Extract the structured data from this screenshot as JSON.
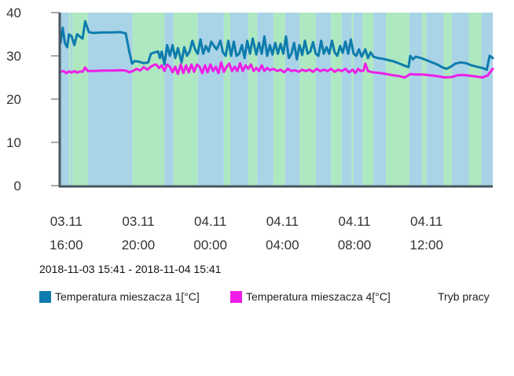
{
  "chart_data": {
    "type": "line",
    "ylim": [
      0,
      40
    ],
    "yticks": [
      0,
      10,
      20,
      30,
      40
    ],
    "xlim_hours": [
      15.68,
      39.68
    ],
    "xticks": [
      {
        "hour": 16,
        "line1": "03.11",
        "line2": "16:00"
      },
      {
        "hour": 20,
        "line1": "03.11",
        "line2": "20:00"
      },
      {
        "hour": 24,
        "line1": "04.11",
        "line2": "00:00"
      },
      {
        "hour": 28,
        "line1": "04.11",
        "line2": "04:00"
      },
      {
        "hour": 32,
        "line1": "04.11",
        "line2": "08:00"
      },
      {
        "hour": 36,
        "line1": "04.11",
        "line2": "12:00"
      }
    ],
    "time_range": "2018-11-03 15:41 - 2018-11-04 15:41",
    "grid": false,
    "legend_position": "bottom",
    "series": [
      {
        "name": "Temperatura mieszacza 1[°C]",
        "color": "#0e7cad",
        "points": [
          [
            15.68,
            33
          ],
          [
            15.8,
            36.5
          ],
          [
            15.92,
            33
          ],
          [
            16.05,
            32
          ],
          [
            16.15,
            35
          ],
          [
            16.3,
            34.5
          ],
          [
            16.45,
            32.5
          ],
          [
            16.6,
            35
          ],
          [
            16.75,
            34.5
          ],
          [
            16.9,
            34
          ],
          [
            17.05,
            38
          ],
          [
            17.25,
            35.5
          ],
          [
            17.5,
            35.3
          ],
          [
            18.0,
            35.4
          ],
          [
            18.5,
            35.4
          ],
          [
            19.0,
            35.5
          ],
          [
            19.3,
            35.2
          ],
          [
            19.5,
            31
          ],
          [
            19.65,
            28.2
          ],
          [
            19.8,
            28.8
          ],
          [
            20.0,
            28.7
          ],
          [
            20.3,
            28.3
          ],
          [
            20.55,
            28.5
          ],
          [
            20.7,
            30.5
          ],
          [
            20.9,
            30.8
          ],
          [
            21.1,
            31
          ],
          [
            21.2,
            29.5
          ],
          [
            21.3,
            31
          ],
          [
            21.45,
            28
          ],
          [
            21.6,
            32.5
          ],
          [
            21.75,
            30
          ],
          [
            21.9,
            32.5
          ],
          [
            22.05,
            29.5
          ],
          [
            22.2,
            31.8
          ],
          [
            22.4,
            28.5
          ],
          [
            22.55,
            32
          ],
          [
            22.7,
            30
          ],
          [
            22.85,
            31
          ],
          [
            23.0,
            33.5
          ],
          [
            23.15,
            31.5
          ],
          [
            23.3,
            30.5
          ],
          [
            23.45,
            33.8
          ],
          [
            23.6,
            30.5
          ],
          [
            23.75,
            32.3
          ],
          [
            23.9,
            31
          ],
          [
            24.05,
            33.3
          ],
          [
            24.2,
            32.3
          ],
          [
            24.35,
            31.5
          ],
          [
            24.55,
            33.5
          ],
          [
            24.7,
            30.8
          ],
          [
            24.85,
            30
          ],
          [
            25.0,
            33.5
          ],
          [
            25.15,
            30
          ],
          [
            25.3,
            33.3
          ],
          [
            25.45,
            30
          ],
          [
            25.6,
            30.5
          ],
          [
            25.75,
            32.5
          ],
          [
            25.9,
            29.5
          ],
          [
            26.05,
            33.5
          ],
          [
            26.2,
            30.5
          ],
          [
            26.35,
            34
          ],
          [
            26.55,
            30.3
          ],
          [
            26.7,
            33
          ],
          [
            26.85,
            30.5
          ],
          [
            27.0,
            34.5
          ],
          [
            27.15,
            30
          ],
          [
            27.3,
            32.5
          ],
          [
            27.45,
            30.3
          ],
          [
            27.6,
            33
          ],
          [
            27.75,
            30.5
          ],
          [
            27.9,
            32.8
          ],
          [
            28.05,
            30.5
          ],
          [
            28.2,
            34.5
          ],
          [
            28.35,
            29.5
          ],
          [
            28.5,
            30.5
          ],
          [
            28.65,
            33
          ],
          [
            28.8,
            29.2
          ],
          [
            28.95,
            32.5
          ],
          [
            29.1,
            30.2
          ],
          [
            29.25,
            33.5
          ],
          [
            29.4,
            30.5
          ],
          [
            29.55,
            31
          ],
          [
            29.7,
            33.2
          ],
          [
            29.85,
            30.5
          ],
          [
            30.0,
            30
          ],
          [
            30.15,
            33.5
          ],
          [
            30.3,
            30.5
          ],
          [
            30.45,
            32
          ],
          [
            30.6,
            30.5
          ],
          [
            30.75,
            33.5
          ],
          [
            30.9,
            30.8
          ],
          [
            31.05,
            30
          ],
          [
            31.2,
            32.3
          ],
          [
            31.35,
            30.7
          ],
          [
            31.5,
            33.3
          ],
          [
            31.65,
            30.5
          ],
          [
            31.8,
            33.8
          ],
          [
            31.95,
            30.5
          ],
          [
            32.1,
            30
          ],
          [
            32.25,
            31.5
          ],
          [
            32.4,
            29.8
          ],
          [
            32.6,
            31.5
          ],
          [
            32.75,
            29.5
          ],
          [
            32.9,
            30.8
          ],
          [
            33.05,
            29.8
          ],
          [
            33.3,
            29.5
          ],
          [
            33.6,
            29.3
          ],
          [
            33.9,
            29
          ],
          [
            34.2,
            28.7
          ],
          [
            34.5,
            28.2
          ],
          [
            34.8,
            27.7
          ],
          [
            35.0,
            27.4
          ],
          [
            35.1,
            30
          ],
          [
            35.25,
            29.2
          ],
          [
            35.4,
            29.8
          ],
          [
            35.7,
            29.5
          ],
          [
            36.0,
            29
          ],
          [
            36.3,
            28.5
          ],
          [
            36.6,
            28
          ],
          [
            36.9,
            27.3
          ],
          [
            37.1,
            27
          ],
          [
            37.35,
            27.5
          ],
          [
            37.6,
            28.2
          ],
          [
            37.9,
            28.5
          ],
          [
            38.2,
            28.3
          ],
          [
            38.5,
            27.8
          ],
          [
            38.8,
            27.5
          ],
          [
            39.1,
            27.2
          ],
          [
            39.35,
            26.8
          ],
          [
            39.5,
            30
          ],
          [
            39.68,
            29.5
          ]
        ]
      },
      {
        "name": "Temperatura mieszacza 4[°C]",
        "color": "#ee1ee8",
        "points": [
          [
            15.68,
            26.3
          ],
          [
            15.85,
            26.5
          ],
          [
            16.0,
            26.0
          ],
          [
            16.15,
            26.4
          ],
          [
            16.3,
            26.1
          ],
          [
            16.45,
            26.5
          ],
          [
            16.6,
            26.1
          ],
          [
            16.75,
            26.4
          ],
          [
            16.9,
            26.3
          ],
          [
            17.05,
            27.3
          ],
          [
            17.2,
            26.5
          ],
          [
            17.5,
            26.5
          ],
          [
            18.0,
            26.6
          ],
          [
            18.5,
            26.6
          ],
          [
            19.0,
            26.7
          ],
          [
            19.3,
            26.6
          ],
          [
            19.5,
            26.2
          ],
          [
            19.7,
            26.5
          ],
          [
            19.9,
            27
          ],
          [
            20.1,
            26.6
          ],
          [
            20.3,
            27.4
          ],
          [
            20.5,
            26.8
          ],
          [
            20.7,
            27.5
          ],
          [
            20.85,
            27.9
          ],
          [
            21.0,
            28
          ],
          [
            21.15,
            27.2
          ],
          [
            21.3,
            27.8
          ],
          [
            21.45,
            26.5
          ],
          [
            21.6,
            28
          ],
          [
            21.75,
            27.5
          ],
          [
            21.9,
            26.2
          ],
          [
            22.05,
            27.5
          ],
          [
            22.2,
            25.8
          ],
          [
            22.35,
            28
          ],
          [
            22.5,
            26
          ],
          [
            22.65,
            27.8
          ],
          [
            22.8,
            26.2
          ],
          [
            22.95,
            28
          ],
          [
            23.1,
            26.3
          ],
          [
            23.25,
            28
          ],
          [
            23.4,
            27.5
          ],
          [
            23.55,
            26
          ],
          [
            23.7,
            27.8
          ],
          [
            23.85,
            26.2
          ],
          [
            24.0,
            28
          ],
          [
            24.15,
            26.5
          ],
          [
            24.3,
            27.5
          ],
          [
            24.45,
            26
          ],
          [
            24.6,
            28.5
          ],
          [
            24.75,
            26.3
          ],
          [
            24.9,
            27.5
          ],
          [
            25.05,
            28.2
          ],
          [
            25.2,
            26.5
          ],
          [
            25.35,
            27.5
          ],
          [
            25.5,
            26.5
          ],
          [
            25.65,
            28.3
          ],
          [
            25.8,
            26.5
          ],
          [
            25.95,
            27.8
          ],
          [
            26.1,
            27
          ],
          [
            26.25,
            28
          ],
          [
            26.4,
            26.5
          ],
          [
            26.55,
            27.2
          ],
          [
            26.7,
            26.5
          ],
          [
            26.85,
            27.8
          ],
          [
            27.0,
            26.5
          ],
          [
            27.15,
            27.2
          ],
          [
            27.3,
            26.7
          ],
          [
            27.5,
            27
          ],
          [
            27.7,
            26.5
          ],
          [
            27.9,
            26.8
          ],
          [
            28.1,
            26.2
          ],
          [
            28.3,
            27
          ],
          [
            28.5,
            26.5
          ],
          [
            28.7,
            26.7
          ],
          [
            28.9,
            26.3
          ],
          [
            29.1,
            26.8
          ],
          [
            29.3,
            26.5
          ],
          [
            29.5,
            26.8
          ],
          [
            29.7,
            26.3
          ],
          [
            29.9,
            27
          ],
          [
            30.1,
            26.5
          ],
          [
            30.3,
            26.8
          ],
          [
            30.5,
            26.5
          ],
          [
            30.7,
            27
          ],
          [
            30.9,
            26.3
          ],
          [
            31.1,
            26.8
          ],
          [
            31.3,
            26.5
          ],
          [
            31.5,
            27
          ],
          [
            31.7,
            26.2
          ],
          [
            31.9,
            26.8
          ],
          [
            32.05,
            26
          ],
          [
            32.2,
            27
          ],
          [
            32.35,
            26.5
          ],
          [
            32.5,
            26.6
          ],
          [
            32.6,
            28.2
          ],
          [
            32.75,
            26.5
          ],
          [
            33.0,
            26.2
          ],
          [
            33.5,
            26
          ],
          [
            34.0,
            25.6
          ],
          [
            34.5,
            25.3
          ],
          [
            34.8,
            25
          ],
          [
            35.1,
            25.8
          ],
          [
            35.4,
            25.7
          ],
          [
            35.8,
            25.7
          ],
          [
            36.2,
            25.5
          ],
          [
            36.6,
            25.3
          ],
          [
            37.0,
            25.0
          ],
          [
            37.4,
            25.1
          ],
          [
            37.7,
            25.5
          ],
          [
            38.0,
            25.6
          ],
          [
            38.4,
            25.4
          ],
          [
            38.8,
            25.2
          ],
          [
            39.1,
            25.0
          ],
          [
            39.4,
            25.5
          ],
          [
            39.68,
            27
          ]
        ]
      }
    ],
    "mode_series": {
      "name": "Tryb pracy",
      "colors": {
        "a": "#a9d3e6",
        "b": "#aee8c0"
      },
      "segments": [
        [
          "a",
          15.68,
          16.15
        ],
        [
          "b",
          16.15,
          16.25
        ],
        [
          "a",
          16.25,
          16.35
        ],
        [
          "b",
          16.35,
          17.2
        ],
        [
          "a",
          17.2,
          19.68
        ],
        [
          "b",
          19.68,
          21.45
        ],
        [
          "a",
          21.45,
          21.95
        ],
        [
          "b",
          21.95,
          23.3
        ],
        [
          "a",
          23.3,
          24.75
        ],
        [
          "b",
          24.75,
          25.1
        ],
        [
          "a",
          25.1,
          26.1
        ],
        [
          "b",
          26.1,
          26.6
        ],
        [
          "a",
          26.6,
          27.5
        ],
        [
          "b",
          27.5,
          28.15
        ],
        [
          "a",
          28.15,
          28.95
        ],
        [
          "b",
          28.95,
          29.85
        ],
        [
          "a",
          29.85,
          30.7
        ],
        [
          "b",
          30.7,
          31.3
        ],
        [
          "a",
          31.3,
          31.85
        ],
        [
          "b",
          31.85,
          31.95
        ],
        [
          "a",
          31.95,
          32.45
        ],
        [
          "b",
          32.45,
          33.05
        ],
        [
          "a",
          33.05,
          33.75
        ],
        [
          "b",
          33.75,
          35.05
        ],
        [
          "a",
          35.05,
          35.75
        ],
        [
          "b",
          35.75,
          36.0
        ],
        [
          "a",
          36.0,
          36.95
        ],
        [
          "b",
          36.95,
          37.4
        ],
        [
          "a",
          37.4,
          38.35
        ],
        [
          "b",
          38.35,
          39.05
        ],
        [
          "a",
          39.05,
          39.68
        ]
      ]
    },
    "legend": [
      {
        "label": "Temperatura mieszacza 1[°C]",
        "color": "#0e7cad"
      },
      {
        "label": "Temperatura mieszacza 4[°C]",
        "color": "#ee1ee8"
      },
      {
        "label": "Tryb pracy",
        "color": ""
      }
    ]
  }
}
